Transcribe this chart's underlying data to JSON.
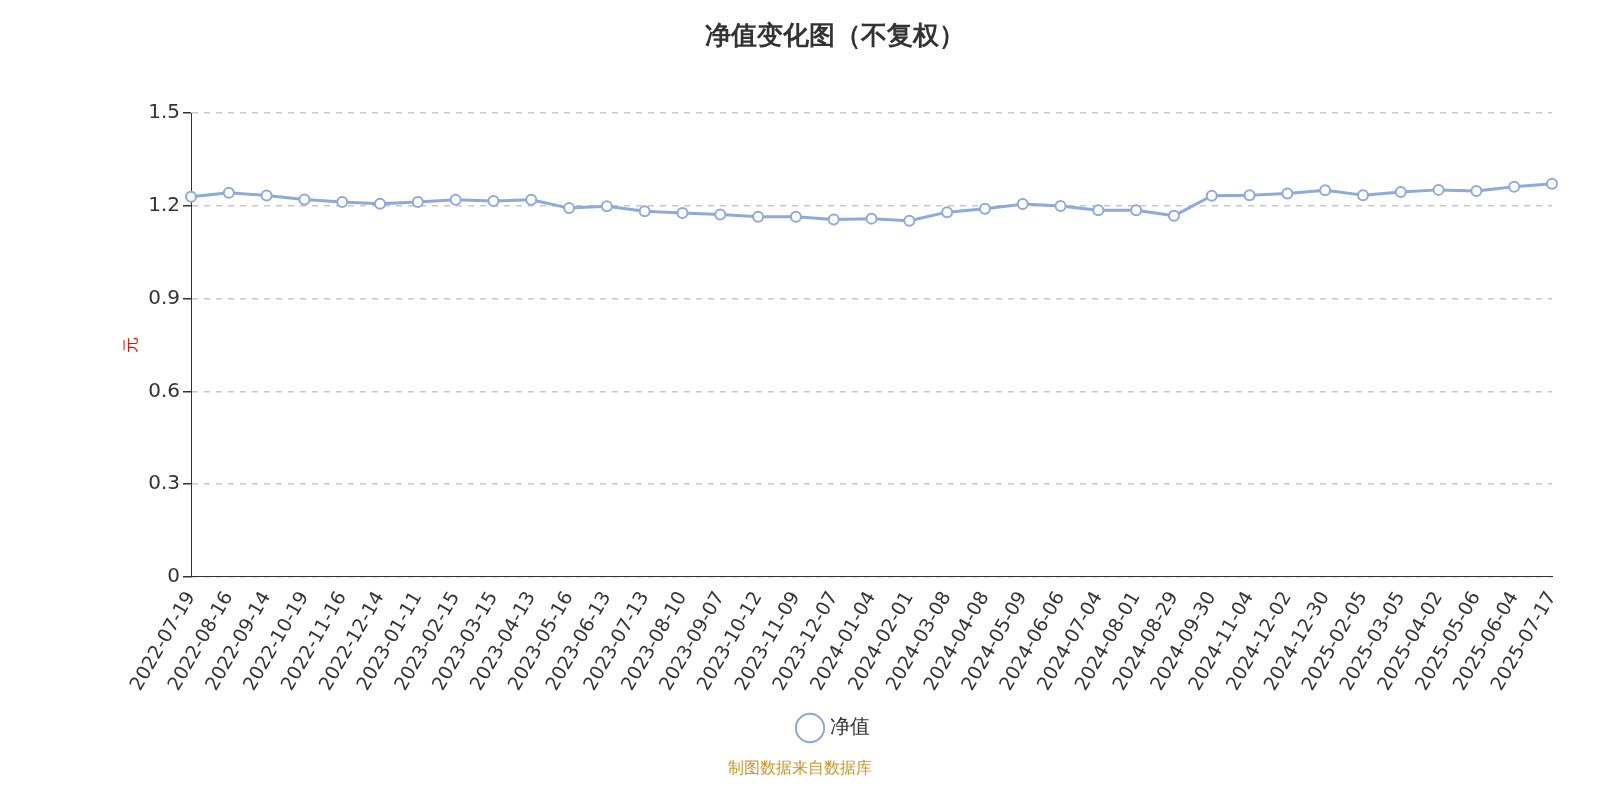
{
  "chart_data": {
    "type": "line",
    "title": "净值变化图（不复权）",
    "ylabel": "元",
    "categories": [
      "2022-07-19",
      "2022-08-16",
      "2022-09-14",
      "2022-10-19",
      "2022-11-16",
      "2022-12-14",
      "2023-01-11",
      "2023-02-15",
      "2023-03-15",
      "2023-04-13",
      "2023-05-16",
      "2023-06-13",
      "2023-07-13",
      "2023-08-10",
      "2023-09-07",
      "2023-10-12",
      "2023-11-09",
      "2023-12-07",
      "2024-01-04",
      "2024-02-01",
      "2024-03-08",
      "2024-04-08",
      "2024-05-09",
      "2024-06-06",
      "2024-07-04",
      "2024-08-01",
      "2024-08-29",
      "2024-09-30",
      "2024-11-04",
      "2024-12-02",
      "2024-12-30",
      "2025-02-05",
      "2025-03-05",
      "2025-04-02",
      "2025-05-06",
      "2025-06-04",
      "2025-07-17"
    ],
    "series": [
      {
        "name": "净值",
        "color": "#8eaadb",
        "values": [
          1.23,
          1.243,
          1.234,
          1.221,
          1.213,
          1.207,
          1.213,
          1.22,
          1.216,
          1.22,
          1.193,
          1.199,
          1.183,
          1.177,
          1.172,
          1.165,
          1.165,
          1.156,
          1.159,
          1.152,
          1.18,
          1.191,
          1.206,
          1.2,
          1.186,
          1.186,
          1.168,
          1.233,
          1.235,
          1.24,
          1.251,
          1.235,
          1.245,
          1.252,
          1.248,
          1.262,
          1.272
        ]
      }
    ],
    "ylim": [
      0,
      1.5
    ],
    "yticks": [
      0,
      0.3,
      0.6,
      0.9,
      1.2,
      1.5
    ],
    "grid": "y",
    "legend": "bottom",
    "marker": "circle",
    "line_style": "solid",
    "annotations": [
      "制图数据来自数据库"
    ]
  }
}
